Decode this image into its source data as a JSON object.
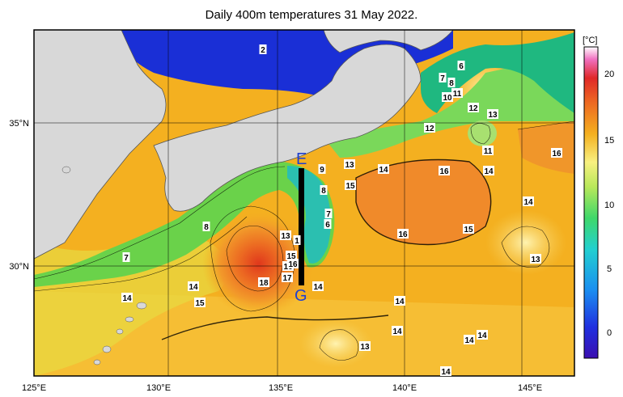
{
  "title": "Daily 400m temperatures 31 May 2022.",
  "colorbar": {
    "unit": "[°C]",
    "ticks": [
      "20",
      "15",
      "10",
      "5",
      "0"
    ]
  },
  "axes": {
    "lon_ticks": [
      "125°E",
      "130°E",
      "135°E",
      "140°E",
      "145°E"
    ],
    "lat_ticks": [
      "35°N",
      "30°N"
    ]
  },
  "section_line": {
    "start_label": "E",
    "end_label": "G"
  },
  "contour_labels": [
    "2",
    "6",
    "7",
    "8",
    "10",
    "11",
    "12",
    "13",
    "12",
    "11",
    "16",
    "16",
    "14",
    "13",
    "16",
    "9",
    "8",
    "15",
    "7",
    "6",
    "14",
    "8",
    "16",
    "15",
    "13",
    "14",
    "13",
    "1",
    "15",
    "16",
    "17",
    "18",
    "14",
    "14",
    "15",
    "7",
    "14",
    "14",
    "14",
    "13",
    "14",
    "14",
    "14"
  ],
  "colors": {
    "land": "#d8d8d8",
    "japan_sea": "#1a2fd6",
    "kuroshio_front": "#3fcf5a",
    "warm_pool": "#ee5522",
    "subtropical": "#f4b020"
  }
}
